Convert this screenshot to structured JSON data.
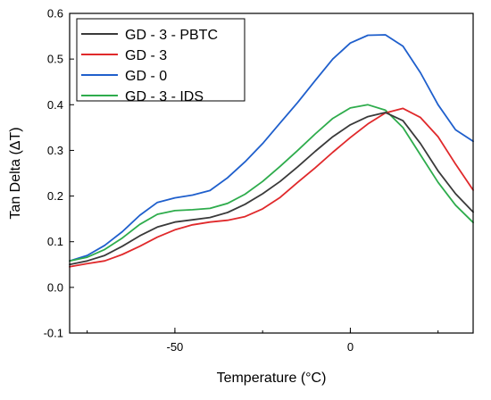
{
  "chart_data": {
    "type": "line",
    "title": "",
    "xlabel": "Temperature (°C)",
    "ylabel": "Tan Delta (ΔT)",
    "xlim": [
      -80,
      35
    ],
    "ylim": [
      -0.1,
      0.6
    ],
    "xticks": [
      -50,
      0
    ],
    "yticks": [
      -0.1,
      0.0,
      0.1,
      0.2,
      0.3,
      0.4,
      0.5,
      0.6
    ],
    "xtick_labels": [
      "-50",
      "0"
    ],
    "ytick_labels": [
      "-0.1",
      "0.0",
      "0.1",
      "0.2",
      "0.3",
      "0.4",
      "0.5",
      "0.6"
    ],
    "grid": false,
    "legend_position": "top-left",
    "series": [
      {
        "name": "GD - 3 - PBTC",
        "color": "#3a3a3a",
        "x": [
          -80,
          -75,
          -70,
          -65,
          -60,
          -55,
          -50,
          -45,
          -40,
          -35,
          -30,
          -25,
          -20,
          -15,
          -10,
          -5,
          0,
          5,
          10,
          15,
          20,
          25,
          30,
          35
        ],
        "y": [
          0.05,
          0.058,
          0.07,
          0.09,
          0.113,
          0.132,
          0.143,
          0.148,
          0.153,
          0.164,
          0.182,
          0.205,
          0.232,
          0.264,
          0.298,
          0.33,
          0.356,
          0.374,
          0.383,
          0.365,
          0.315,
          0.255,
          0.205,
          0.165
        ]
      },
      {
        "name": "GD - 3",
        "color": "#e0292b",
        "x": [
          -80,
          -75,
          -70,
          -65,
          -60,
          -55,
          -50,
          -45,
          -40,
          -35,
          -30,
          -25,
          -20,
          -15,
          -10,
          -5,
          0,
          5,
          10,
          15,
          20,
          25,
          30,
          35
        ],
        "y": [
          0.045,
          0.052,
          0.058,
          0.072,
          0.09,
          0.11,
          0.126,
          0.137,
          0.143,
          0.147,
          0.155,
          0.172,
          0.197,
          0.23,
          0.262,
          0.296,
          0.328,
          0.358,
          0.382,
          0.392,
          0.372,
          0.33,
          0.27,
          0.213
        ]
      },
      {
        "name": "GD - 0",
        "color": "#1f5fcc",
        "x": [
          -80,
          -75,
          -70,
          -65,
          -60,
          -55,
          -50,
          -45,
          -40,
          -35,
          -30,
          -25,
          -20,
          -15,
          -10,
          -5,
          0,
          5,
          10,
          15,
          20,
          25,
          30,
          35
        ],
        "y": [
          0.058,
          0.07,
          0.092,
          0.122,
          0.158,
          0.186,
          0.196,
          0.202,
          0.212,
          0.24,
          0.275,
          0.315,
          0.36,
          0.405,
          0.453,
          0.5,
          0.535,
          0.552,
          0.553,
          0.528,
          0.47,
          0.4,
          0.345,
          0.32
        ]
      },
      {
        "name": "GD - 3 - IDS",
        "color": "#2eac4c",
        "x": [
          -80,
          -75,
          -70,
          -65,
          -60,
          -55,
          -50,
          -45,
          -40,
          -35,
          -30,
          -25,
          -20,
          -15,
          -10,
          -5,
          0,
          5,
          10,
          15,
          20,
          25,
          30,
          35
        ],
        "y": [
          0.058,
          0.066,
          0.083,
          0.108,
          0.138,
          0.16,
          0.168,
          0.17,
          0.173,
          0.184,
          0.204,
          0.232,
          0.265,
          0.3,
          0.336,
          0.37,
          0.393,
          0.4,
          0.388,
          0.35,
          0.29,
          0.23,
          0.18,
          0.142
        ]
      }
    ]
  }
}
